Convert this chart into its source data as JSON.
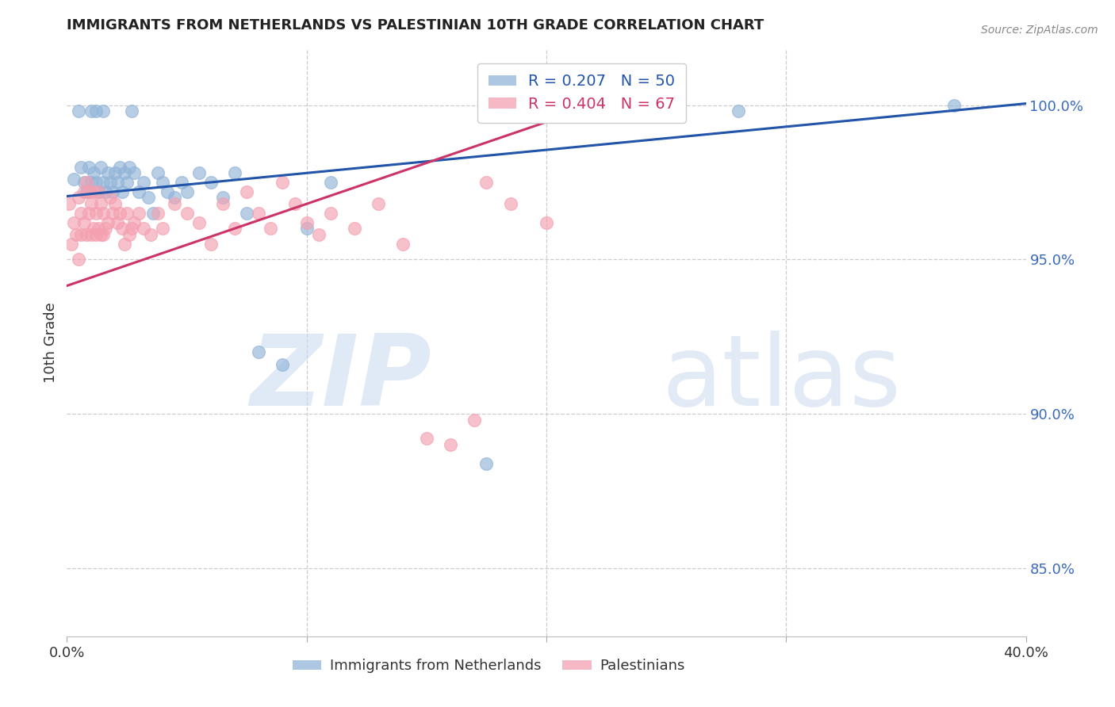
{
  "title": "IMMIGRANTS FROM NETHERLANDS VS PALESTINIAN 10TH GRADE CORRELATION CHART",
  "source": "Source: ZipAtlas.com",
  "ylabel": "10th Grade",
  "y_tick_values": [
    0.85,
    0.9,
    0.95,
    1.0
  ],
  "x_range": [
    0.0,
    0.4
  ],
  "y_range": [
    0.828,
    1.018
  ],
  "watermark_zip": "ZIP",
  "watermark_atlas": "atlas",
  "legend_blue_r": "0.207",
  "legend_blue_n": "50",
  "legend_pink_r": "0.404",
  "legend_pink_n": "67",
  "blue_color": "#92b4d8",
  "pink_color": "#f4a0b0",
  "trendline_blue_color": "#2255aa",
  "trendline_pink_color": "#cc3366",
  "axis_label_color": "#3a6abf",
  "title_color": "#222222",
  "blue_points_x": [
    0.003,
    0.005,
    0.006,
    0.007,
    0.008,
    0.009,
    0.01,
    0.01,
    0.011,
    0.012,
    0.012,
    0.013,
    0.014,
    0.015,
    0.015,
    0.016,
    0.017,
    0.018,
    0.019,
    0.02,
    0.021,
    0.022,
    0.023,
    0.024,
    0.025,
    0.026,
    0.027,
    0.028,
    0.03,
    0.032,
    0.034,
    0.036,
    0.038,
    0.04,
    0.042,
    0.045,
    0.048,
    0.05,
    0.055,
    0.06,
    0.065,
    0.07,
    0.075,
    0.08,
    0.09,
    0.1,
    0.11,
    0.175,
    0.28,
    0.37
  ],
  "blue_points_y": [
    0.976,
    0.998,
    0.98,
    0.975,
    0.972,
    0.98,
    0.975,
    0.998,
    0.978,
    0.975,
    0.998,
    0.972,
    0.98,
    0.975,
    0.998,
    0.972,
    0.978,
    0.975,
    0.972,
    0.978,
    0.975,
    0.98,
    0.972,
    0.978,
    0.975,
    0.98,
    0.998,
    0.978,
    0.972,
    0.975,
    0.97,
    0.965,
    0.978,
    0.975,
    0.972,
    0.97,
    0.975,
    0.972,
    0.978,
    0.975,
    0.97,
    0.978,
    0.965,
    0.92,
    0.916,
    0.96,
    0.975,
    0.884,
    0.998,
    1.0
  ],
  "pink_points_x": [
    0.001,
    0.002,
    0.003,
    0.004,
    0.005,
    0.005,
    0.006,
    0.006,
    0.007,
    0.007,
    0.008,
    0.008,
    0.009,
    0.009,
    0.01,
    0.01,
    0.011,
    0.011,
    0.012,
    0.012,
    0.013,
    0.013,
    0.014,
    0.014,
    0.015,
    0.015,
    0.016,
    0.017,
    0.018,
    0.019,
    0.02,
    0.021,
    0.022,
    0.023,
    0.024,
    0.025,
    0.026,
    0.027,
    0.028,
    0.03,
    0.032,
    0.035,
    0.038,
    0.04,
    0.045,
    0.05,
    0.055,
    0.06,
    0.065,
    0.07,
    0.075,
    0.08,
    0.085,
    0.09,
    0.095,
    0.1,
    0.105,
    0.11,
    0.12,
    0.13,
    0.14,
    0.15,
    0.16,
    0.17,
    0.175,
    0.185,
    0.2
  ],
  "pink_points_y": [
    0.968,
    0.955,
    0.962,
    0.958,
    0.97,
    0.95,
    0.965,
    0.958,
    0.972,
    0.962,
    0.975,
    0.958,
    0.965,
    0.972,
    0.968,
    0.958,
    0.972,
    0.96,
    0.965,
    0.958,
    0.972,
    0.96,
    0.968,
    0.958,
    0.965,
    0.958,
    0.96,
    0.962,
    0.97,
    0.965,
    0.968,
    0.962,
    0.965,
    0.96,
    0.955,
    0.965,
    0.958,
    0.96,
    0.962,
    0.965,
    0.96,
    0.958,
    0.965,
    0.96,
    0.968,
    0.965,
    0.962,
    0.955,
    0.968,
    0.96,
    0.972,
    0.965,
    0.96,
    0.975,
    0.968,
    0.962,
    0.958,
    0.965,
    0.96,
    0.968,
    0.955,
    0.892,
    0.89,
    0.898,
    0.975,
    0.968,
    0.962
  ],
  "blue_trendline_x": [
    0.0,
    0.4
  ],
  "blue_trendline_y": [
    0.9705,
    1.0005
  ],
  "pink_trendline_x": [
    0.0,
    0.215
  ],
  "pink_trendline_y": [
    0.9415,
    0.9985
  ]
}
